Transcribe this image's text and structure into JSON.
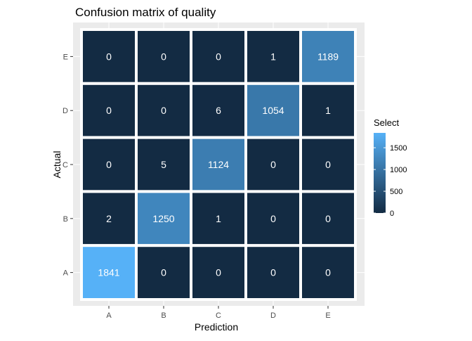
{
  "chart_data": {
    "type": "heatmap",
    "title": "Confusion matrix of quality",
    "xlabel": "Prediction",
    "ylabel": "Actual",
    "x_categories": [
      "A",
      "B",
      "C",
      "D",
      "E"
    ],
    "y_categories": [
      "A",
      "B",
      "C",
      "D",
      "E"
    ],
    "cells": [
      {
        "actual": "E",
        "prediction": "A",
        "value": 0
      },
      {
        "actual": "E",
        "prediction": "B",
        "value": 0
      },
      {
        "actual": "E",
        "prediction": "C",
        "value": 0
      },
      {
        "actual": "E",
        "prediction": "D",
        "value": 1
      },
      {
        "actual": "E",
        "prediction": "E",
        "value": 1189
      },
      {
        "actual": "D",
        "prediction": "A",
        "value": 0
      },
      {
        "actual": "D",
        "prediction": "B",
        "value": 0
      },
      {
        "actual": "D",
        "prediction": "C",
        "value": 6
      },
      {
        "actual": "D",
        "prediction": "D",
        "value": 1054
      },
      {
        "actual": "D",
        "prediction": "E",
        "value": 1
      },
      {
        "actual": "C",
        "prediction": "A",
        "value": 0
      },
      {
        "actual": "C",
        "prediction": "B",
        "value": 5
      },
      {
        "actual": "C",
        "prediction": "C",
        "value": 1124
      },
      {
        "actual": "C",
        "prediction": "D",
        "value": 0
      },
      {
        "actual": "C",
        "prediction": "E",
        "value": 0
      },
      {
        "actual": "B",
        "prediction": "A",
        "value": 2
      },
      {
        "actual": "B",
        "prediction": "B",
        "value": 1250
      },
      {
        "actual": "B",
        "prediction": "C",
        "value": 1
      },
      {
        "actual": "B",
        "prediction": "D",
        "value": 0
      },
      {
        "actual": "B",
        "prediction": "E",
        "value": 0
      },
      {
        "actual": "A",
        "prediction": "A",
        "value": 1841
      },
      {
        "actual": "A",
        "prediction": "B",
        "value": 0
      },
      {
        "actual": "A",
        "prediction": "C",
        "value": 0
      },
      {
        "actual": "A",
        "prediction": "D",
        "value": 0
      },
      {
        "actual": "A",
        "prediction": "E",
        "value": 0
      }
    ],
    "legend": {
      "title": "Select",
      "ticks": [
        0,
        500,
        1000,
        1500
      ],
      "range": [
        0,
        1841
      ],
      "placement": "right"
    },
    "colors": {
      "low": "#132b43",
      "high": "#56b1f7",
      "panel_background": "#ebebeb",
      "cell_border": "#ffffff"
    },
    "grid": true
  }
}
